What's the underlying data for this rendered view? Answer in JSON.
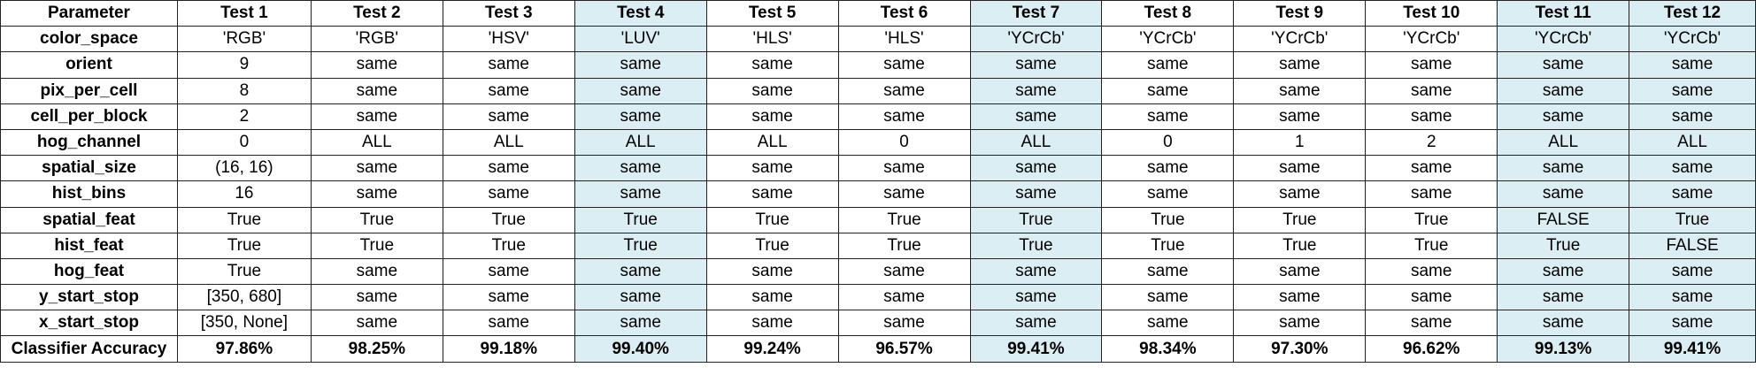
{
  "table": {
    "header_label": "Parameter",
    "columns": [
      "Test 1",
      "Test 2",
      "Test 3",
      "Test 4",
      "Test 5",
      "Test 6",
      "Test 7",
      "Test 8",
      "Test 9",
      "Test 10",
      "Test 11",
      "Test 12"
    ],
    "highlighted_columns": [
      "Test 4",
      "Test 7",
      "Test 11",
      "Test 12"
    ],
    "highlight_color": "#dbeef3",
    "rows": [
      {
        "label": "color_space",
        "values": [
          "'RGB'",
          "'RGB'",
          "'HSV'",
          "'LUV'",
          "'HLS'",
          "'HLS'",
          "'YCrCb'",
          "'YCrCb'",
          "'YCrCb'",
          "'YCrCb'",
          "'YCrCb'",
          "'YCrCb'"
        ]
      },
      {
        "label": "orient",
        "values": [
          "9",
          "same",
          "same",
          "same",
          "same",
          "same",
          "same",
          "same",
          "same",
          "same",
          "same",
          "same"
        ]
      },
      {
        "label": "pix_per_cell",
        "values": [
          "8",
          "same",
          "same",
          "same",
          "same",
          "same",
          "same",
          "same",
          "same",
          "same",
          "same",
          "same"
        ]
      },
      {
        "label": "cell_per_block",
        "values": [
          "2",
          "same",
          "same",
          "same",
          "same",
          "same",
          "same",
          "same",
          "same",
          "same",
          "same",
          "same"
        ]
      },
      {
        "label": "hog_channel",
        "values": [
          "0",
          "ALL",
          "ALL",
          "ALL",
          "ALL",
          "0",
          "ALL",
          "0",
          "1",
          "2",
          "ALL",
          "ALL"
        ]
      },
      {
        "label": "spatial_size",
        "values": [
          "(16, 16)",
          "same",
          "same",
          "same",
          "same",
          "same",
          "same",
          "same",
          "same",
          "same",
          "same",
          "same"
        ]
      },
      {
        "label": "hist_bins",
        "values": [
          "16",
          "same",
          "same",
          "same",
          "same",
          "same",
          "same",
          "same",
          "same",
          "same",
          "same",
          "same"
        ]
      },
      {
        "label": "spatial_feat",
        "values": [
          "True",
          "True",
          "True",
          "True",
          "True",
          "True",
          "True",
          "True",
          "True",
          "True",
          "FALSE",
          "True"
        ]
      },
      {
        "label": "hist_feat",
        "values": [
          "True",
          "True",
          "True",
          "True",
          "True",
          "True",
          "True",
          "True",
          "True",
          "True",
          "True",
          "FALSE"
        ]
      },
      {
        "label": "hog_feat",
        "values": [
          "True",
          "same",
          "same",
          "same",
          "same",
          "same",
          "same",
          "same",
          "same",
          "same",
          "same",
          "same"
        ]
      },
      {
        "label": "y_start_stop",
        "values": [
          "[350, 680]",
          "same",
          "same",
          "same",
          "same",
          "same",
          "same",
          "same",
          "same",
          "same",
          "same",
          "same"
        ]
      },
      {
        "label": "x_start_stop",
        "values": [
          "[350, None]",
          "same",
          "same",
          "same",
          "same",
          "same",
          "same",
          "same",
          "same",
          "same",
          "same",
          "same"
        ]
      }
    ],
    "accuracy_row": {
      "label": "Classifier Accuracy",
      "values": [
        "97.86%",
        "98.25%",
        "99.18%",
        "99.40%",
        "99.24%",
        "96.57%",
        "99.41%",
        "98.34%",
        "97.30%",
        "96.62%",
        "99.13%",
        "99.41%"
      ]
    }
  }
}
